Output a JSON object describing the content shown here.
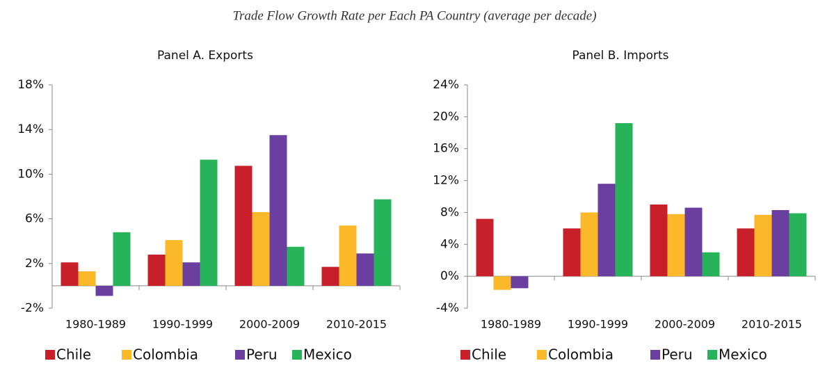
{
  "title": "Trade Flow Growth Rate per Each PA Country (average per decade)",
  "chart_data": [
    {
      "type": "bar",
      "title": "Panel A. Exports",
      "categories": [
        "1980-1989",
        "1990-1999",
        "2000-2009",
        "2010-2015"
      ],
      "series": [
        {
          "name": "Chile",
          "color": "#c8202a",
          "values": [
            2.1,
            2.8,
            10.75,
            1.7
          ]
        },
        {
          "name": "Colombia",
          "color": "#fbb829",
          "values": [
            1.3,
            4.1,
            6.6,
            5.4
          ]
        },
        {
          "name": "Peru",
          "color": "#6b3fa0",
          "values": [
            -0.9,
            2.1,
            13.5,
            2.9
          ]
        },
        {
          "name": "Mexico",
          "color": "#27b35a",
          "values": [
            4.8,
            11.3,
            3.5,
            7.75
          ]
        }
      ],
      "ylim": [
        -2,
        18
      ],
      "yticks": [
        {
          "value": -2,
          "label": "-2%"
        },
        {
          "value": 2,
          "label": "2%"
        },
        {
          "value": 6,
          "label": "6%"
        },
        {
          "value": 10,
          "label": "10%"
        },
        {
          "value": 14,
          "label": "14%"
        },
        {
          "value": 18,
          "label": "18%"
        }
      ],
      "legend": "bottom"
    },
    {
      "type": "bar",
      "title": "Panel B. Imports",
      "categories": [
        "1980-1989",
        "1990-1999",
        "2000-2009",
        "2010-2015"
      ],
      "series": [
        {
          "name": "Chile",
          "color": "#c8202a",
          "values": [
            7.2,
            6.0,
            9.0,
            6.0
          ]
        },
        {
          "name": "Colombia",
          "color": "#fbb829",
          "values": [
            -1.7,
            8.0,
            7.8,
            7.7
          ]
        },
        {
          "name": "Peru",
          "color": "#6b3fa0",
          "values": [
            -1.5,
            11.6,
            8.6,
            8.3
          ]
        },
        {
          "name": "Mexico",
          "color": "#27b35a",
          "values": [
            null,
            19.2,
            3.0,
            7.9
          ]
        }
      ],
      "ylim": [
        -4,
        24
      ],
      "yticks": [
        {
          "value": -4,
          "label": "-4%"
        },
        {
          "value": 0,
          "label": "0%"
        },
        {
          "value": 4,
          "label": "4%"
        },
        {
          "value": 8,
          "label": "8%"
        },
        {
          "value": 12,
          "label": "12%"
        },
        {
          "value": 16,
          "label": "16%"
        },
        {
          "value": 20,
          "label": "20%"
        },
        {
          "value": 24,
          "label": "24%"
        }
      ],
      "legend": "bottom"
    }
  ]
}
